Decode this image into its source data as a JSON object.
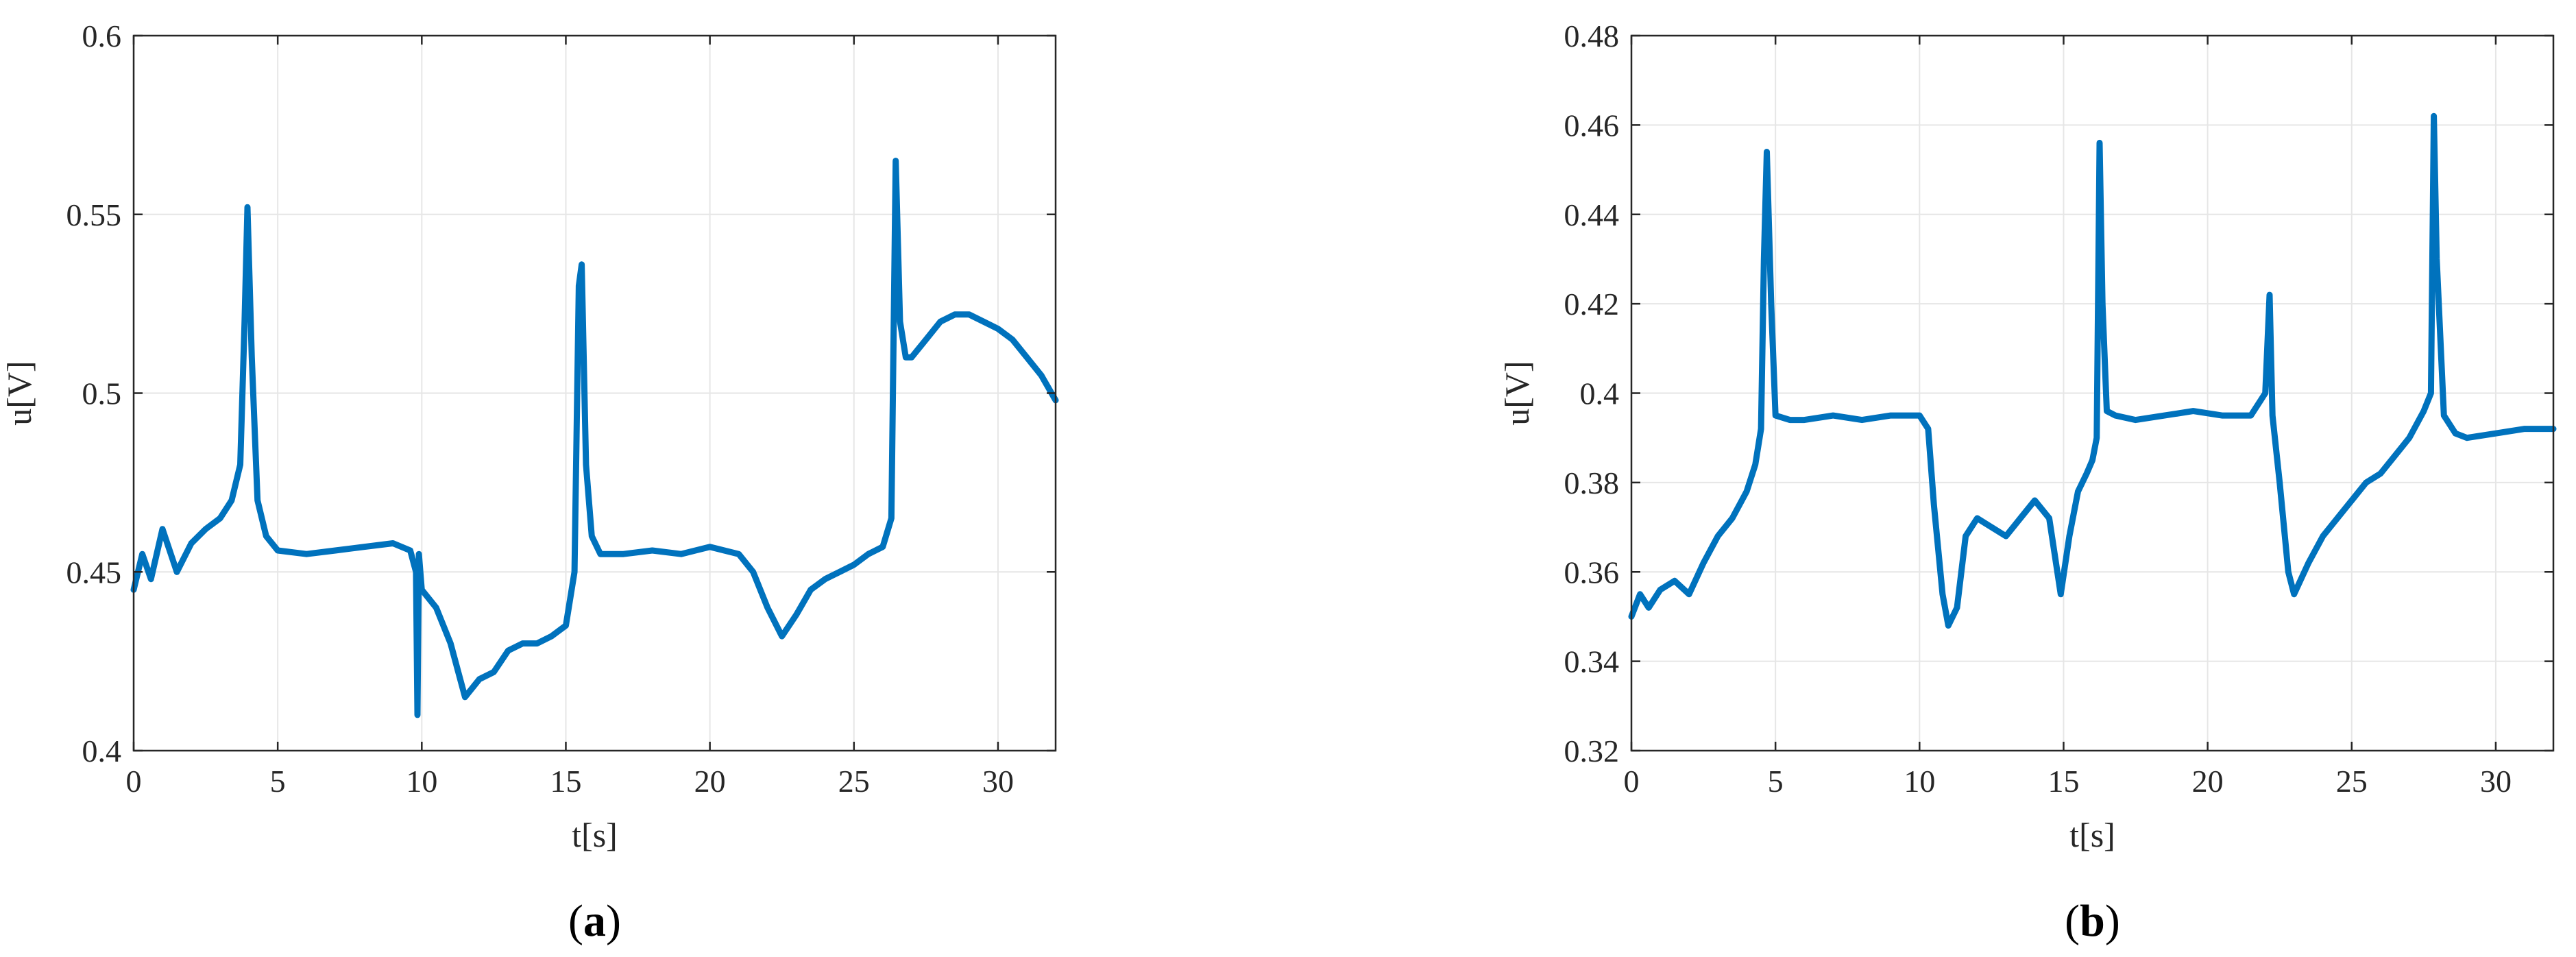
{
  "colors": {
    "series": "#0072bd",
    "grid": "#e6e6e6",
    "axis": "#262626"
  },
  "chart_data": [
    {
      "type": "line",
      "panel_label": "a",
      "xlabel": "t[s]",
      "ylabel": "u[V]",
      "xlim": [
        0,
        32
      ],
      "ylim": [
        0.4,
        0.6
      ],
      "xticks": [
        0,
        5,
        10,
        15,
        20,
        25,
        30
      ],
      "yticks": [
        0.4,
        0.45,
        0.5,
        0.55,
        0.6
      ],
      "xtick_labels": [
        "0",
        "5",
        "10",
        "15",
        "20",
        "25",
        "30"
      ],
      "ytick_labels": [
        "0.4",
        "0.45",
        "0.5",
        "0.55",
        "0.6"
      ],
      "grid": true,
      "series": [
        {
          "x": [
            0,
            0.3,
            0.6,
            1.0,
            1.5,
            2.0,
            2.5,
            3.0,
            3.4,
            3.7,
            3.85,
            3.95,
            4.1,
            4.3,
            4.6,
            5.0,
            6.0,
            7.0,
            8.0,
            9.0,
            9.6,
            9.8,
            9.85,
            9.9,
            10.0,
            10.5,
            11.0,
            11.5,
            12.0,
            12.5,
            13.0,
            13.5,
            14.0,
            14.5,
            15.0,
            15.3,
            15.45,
            15.55,
            15.7,
            15.9,
            16.2,
            17.0,
            18.0,
            19.0,
            20.0,
            20.5,
            21.0,
            21.5,
            22.0,
            22.5,
            23.0,
            23.5,
            24.0,
            24.5,
            25.0,
            25.5,
            26.0,
            26.3,
            26.45,
            26.6,
            26.8,
            27.0,
            27.5,
            28.0,
            28.5,
            29.0,
            29.5,
            30.0,
            30.5,
            31.0,
            31.5,
            32.0
          ],
          "y": [
            0.445,
            0.455,
            0.448,
            0.462,
            0.45,
            0.458,
            0.462,
            0.465,
            0.47,
            0.48,
            0.52,
            0.552,
            0.51,
            0.47,
            0.46,
            0.456,
            0.455,
            0.456,
            0.457,
            0.458,
            0.456,
            0.45,
            0.41,
            0.455,
            0.445,
            0.44,
            0.43,
            0.415,
            0.42,
            0.422,
            0.428,
            0.43,
            0.43,
            0.432,
            0.435,
            0.45,
            0.53,
            0.536,
            0.48,
            0.46,
            0.455,
            0.455,
            0.456,
            0.455,
            0.457,
            0.456,
            0.455,
            0.45,
            0.44,
            0.432,
            0.438,
            0.445,
            0.448,
            0.45,
            0.452,
            0.455,
            0.457,
            0.465,
            0.565,
            0.52,
            0.51,
            0.51,
            0.515,
            0.52,
            0.522,
            0.522,
            0.52,
            0.518,
            0.515,
            0.51,
            0.505,
            0.498
          ]
        }
      ]
    },
    {
      "type": "line",
      "panel_label": "b",
      "xlabel": "t[s]",
      "ylabel": "u[V]",
      "xlim": [
        0,
        32
      ],
      "ylim": [
        0.32,
        0.48
      ],
      "xticks": [
        0,
        5,
        10,
        15,
        20,
        25,
        30
      ],
      "yticks": [
        0.32,
        0.34,
        0.36,
        0.38,
        0.4,
        0.42,
        0.44,
        0.46,
        0.48
      ],
      "xtick_labels": [
        "0",
        "5",
        "10",
        "15",
        "20",
        "25",
        "30"
      ],
      "ytick_labels": [
        "0.32",
        "0.34",
        "0.36",
        "0.38",
        "0.4",
        "0.42",
        "0.44",
        "0.46",
        "0.48"
      ],
      "grid": true,
      "series": [
        {
          "x": [
            0,
            0.3,
            0.6,
            1.0,
            1.5,
            2.0,
            2.5,
            3.0,
            3.5,
            4.0,
            4.3,
            4.5,
            4.6,
            4.7,
            4.85,
            5.0,
            5.5,
            6.0,
            7.0,
            8.0,
            9.0,
            10.0,
            10.3,
            10.5,
            10.8,
            11.0,
            11.3,
            11.6,
            12.0,
            12.5,
            13.0,
            13.5,
            14.0,
            14.5,
            14.9,
            15.2,
            15.5,
            15.8,
            16.0,
            16.15,
            16.25,
            16.35,
            16.5,
            16.8,
            17.5,
            18.5,
            19.5,
            20.5,
            21.5,
            22.0,
            22.15,
            22.25,
            22.5,
            22.8,
            23.0,
            23.5,
            24.0,
            24.5,
            25.0,
            25.5,
            26.0,
            26.5,
            27.0,
            27.5,
            27.75,
            27.85,
            27.95,
            28.2,
            28.6,
            29.0,
            30.0,
            31.0,
            32.0
          ],
          "y": [
            0.35,
            0.355,
            0.352,
            0.356,
            0.358,
            0.355,
            0.362,
            0.368,
            0.372,
            0.378,
            0.384,
            0.392,
            0.43,
            0.454,
            0.42,
            0.395,
            0.394,
            0.394,
            0.395,
            0.394,
            0.395,
            0.395,
            0.392,
            0.375,
            0.355,
            0.348,
            0.352,
            0.368,
            0.372,
            0.37,
            0.368,
            0.372,
            0.376,
            0.372,
            0.355,
            0.368,
            0.378,
            0.382,
            0.385,
            0.39,
            0.456,
            0.42,
            0.396,
            0.395,
            0.394,
            0.395,
            0.396,
            0.395,
            0.395,
            0.4,
            0.422,
            0.395,
            0.38,
            0.36,
            0.355,
            0.362,
            0.368,
            0.372,
            0.376,
            0.38,
            0.382,
            0.386,
            0.39,
            0.396,
            0.4,
            0.462,
            0.43,
            0.395,
            0.391,
            0.39,
            0.391,
            0.392,
            0.392
          ]
        }
      ]
    }
  ]
}
